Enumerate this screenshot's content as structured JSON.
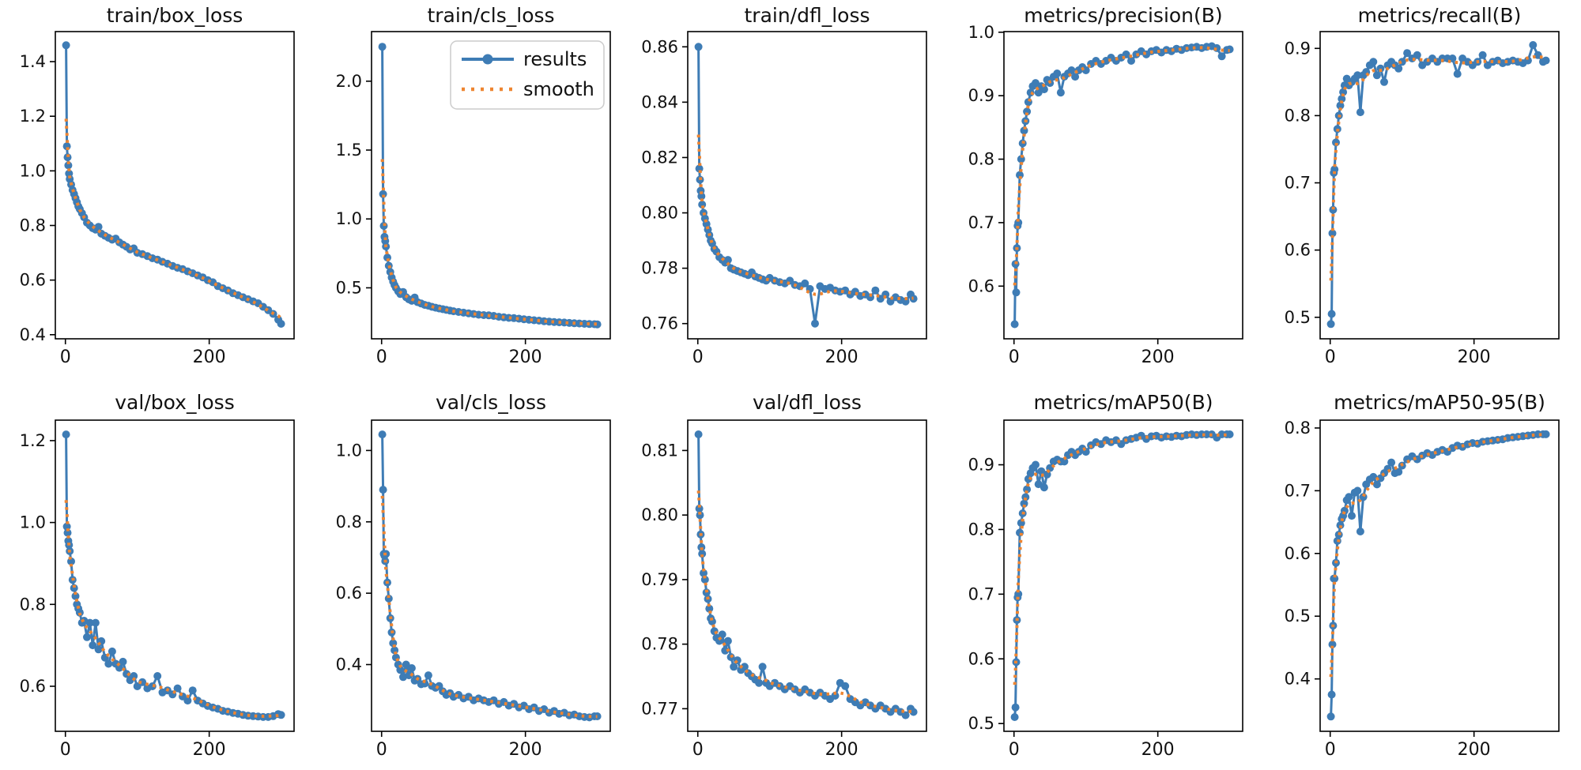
{
  "figure": {
    "background": "#ffffff",
    "rows": 2,
    "cols": 5
  },
  "style": {
    "results_color": "#3e7cb5",
    "smooth_color": "#ee8531",
    "spine_color": "#000000",
    "tick_text_color": "#111111",
    "legend_border_color": "#cccccc",
    "legend_bg_color": "#ffffff"
  },
  "legend": {
    "entries": [
      {
        "label": "results",
        "style": "line-with-dot-marker"
      },
      {
        "label": "smooth",
        "style": "dotted"
      }
    ],
    "shown_on_panel": "train/cls_loss"
  },
  "chart_data": {
    "type": "line",
    "layout_hint": "2x5 grid of matplotlib-style panels, no gridlines, box spines, legend only on train/cls_loss",
    "xlim": [
      -14,
      318
    ],
    "xticks": [
      0,
      200
    ],
    "xtick_labels": [
      "0",
      "200"
    ],
    "x": [
      1,
      2,
      3,
      4,
      5,
      6,
      8,
      10,
      12,
      14,
      16,
      18,
      20,
      23,
      26,
      30,
      34,
      38,
      42,
      46,
      50,
      55,
      60,
      65,
      70,
      75,
      80,
      85,
      90,
      95,
      100,
      107,
      114,
      121,
      128,
      135,
      142,
      149,
      156,
      163,
      170,
      177,
      184,
      191,
      198,
      205,
      212,
      219,
      226,
      233,
      240,
      247,
      254,
      261,
      268,
      275,
      282,
      289,
      296,
      300
    ],
    "series_names": [
      "results",
      "smooth"
    ],
    "panels": [
      {
        "title": "train/box_loss",
        "legend": false,
        "ylim": [
          0.385,
          1.51
        ],
        "yticks": [
          0.4,
          0.6,
          0.8,
          1.0,
          1.2,
          1.4
        ],
        "ytick_labels": [
          "0.4",
          "0.6",
          "0.8",
          "1.0",
          "1.2",
          "1.4"
        ],
        "y": [
          1.46,
          1.09,
          1.05,
          1.02,
          0.99,
          0.97,
          0.95,
          0.93,
          0.915,
          0.9,
          0.885,
          0.87,
          0.86,
          0.845,
          0.83,
          0.81,
          0.8,
          0.79,
          0.785,
          0.795,
          0.77,
          0.762,
          0.755,
          0.748,
          0.752,
          0.738,
          0.73,
          0.722,
          0.712,
          0.716,
          0.7,
          0.695,
          0.688,
          0.68,
          0.675,
          0.667,
          0.66,
          0.652,
          0.645,
          0.64,
          0.632,
          0.625,
          0.617,
          0.61,
          0.6,
          0.592,
          0.578,
          0.57,
          0.562,
          0.552,
          0.545,
          0.537,
          0.53,
          0.522,
          0.515,
          0.502,
          0.49,
          0.476,
          0.455,
          0.44
        ]
      },
      {
        "title": "train/cls_loss",
        "legend": true,
        "ylim": [
          0.13,
          2.36
        ],
        "yticks": [
          0.5,
          1.0,
          1.5,
          2.0
        ],
        "ytick_labels": [
          "0.5",
          "1.0",
          "1.5",
          "2.0"
        ],
        "y": [
          2.25,
          1.18,
          0.95,
          0.87,
          0.84,
          0.8,
          0.72,
          0.66,
          0.615,
          0.575,
          0.545,
          0.52,
          0.5,
          0.475,
          0.455,
          0.47,
          0.432,
          0.416,
          0.406,
          0.43,
          0.396,
          0.386,
          0.376,
          0.37,
          0.362,
          0.356,
          0.35,
          0.345,
          0.34,
          0.335,
          0.33,
          0.325,
          0.32,
          0.315,
          0.31,
          0.305,
          0.302,
          0.3,
          0.296,
          0.29,
          0.286,
          0.282,
          0.28,
          0.276,
          0.272,
          0.268,
          0.265,
          0.262,
          0.258,
          0.255,
          0.252,
          0.25,
          0.248,
          0.245,
          0.243,
          0.241,
          0.239,
          0.237,
          0.236,
          0.235
        ]
      },
      {
        "title": "train/dfl_loss",
        "legend": false,
        "ylim": [
          0.7545,
          0.8655
        ],
        "yticks": [
          0.76,
          0.78,
          0.8,
          0.82,
          0.84,
          0.86
        ],
        "ytick_labels": [
          "0.76",
          "0.78",
          "0.80",
          "0.82",
          "0.84",
          "0.86"
        ],
        "y": [
          0.86,
          0.816,
          0.812,
          0.808,
          0.806,
          0.803,
          0.8,
          0.798,
          0.796,
          0.794,
          0.792,
          0.79,
          0.789,
          0.787,
          0.786,
          0.784,
          0.783,
          0.782,
          0.783,
          0.78,
          0.7795,
          0.779,
          0.7785,
          0.778,
          0.7775,
          0.7785,
          0.777,
          0.7765,
          0.776,
          0.7755,
          0.7765,
          0.7755,
          0.775,
          0.7745,
          0.7755,
          0.774,
          0.7735,
          0.7745,
          0.7725,
          0.76,
          0.7735,
          0.7725,
          0.773,
          0.772,
          0.7715,
          0.772,
          0.7705,
          0.7715,
          0.77,
          0.7705,
          0.7695,
          0.772,
          0.769,
          0.7705,
          0.768,
          0.7695,
          0.7685,
          0.768,
          0.7705,
          0.769
        ]
      },
      {
        "title": "metrics/precision(B)",
        "legend": false,
        "ylim": [
          0.517,
          1.001
        ],
        "yticks": [
          0.6,
          0.7,
          0.8,
          0.9,
          1.0
        ],
        "ytick_labels": [
          "0.6",
          "0.7",
          "0.8",
          "0.9",
          "1.0"
        ],
        "y": [
          0.54,
          0.635,
          0.59,
          0.66,
          0.695,
          0.7,
          0.775,
          0.8,
          0.825,
          0.845,
          0.86,
          0.875,
          0.89,
          0.905,
          0.915,
          0.92,
          0.905,
          0.915,
          0.91,
          0.925,
          0.92,
          0.93,
          0.935,
          0.905,
          0.93,
          0.935,
          0.94,
          0.93,
          0.94,
          0.945,
          0.94,
          0.95,
          0.955,
          0.95,
          0.955,
          0.96,
          0.955,
          0.96,
          0.965,
          0.955,
          0.965,
          0.97,
          0.965,
          0.97,
          0.972,
          0.968,
          0.972,
          0.97,
          0.974,
          0.972,
          0.975,
          0.976,
          0.977,
          0.975,
          0.977,
          0.978,
          0.975,
          0.962,
          0.972,
          0.973
        ]
      },
      {
        "title": "metrics/recall(B)",
        "legend": false,
        "ylim": [
          0.468,
          0.925
        ],
        "yticks": [
          0.5,
          0.6,
          0.7,
          0.8,
          0.9
        ],
        "ytick_labels": [
          "0.5",
          "0.6",
          "0.7",
          "0.8",
          "0.9"
        ],
        "y": [
          0.49,
          0.505,
          0.625,
          0.66,
          0.715,
          0.72,
          0.76,
          0.78,
          0.8,
          0.815,
          0.825,
          0.835,
          0.845,
          0.855,
          0.845,
          0.85,
          0.855,
          0.86,
          0.805,
          0.86,
          0.865,
          0.875,
          0.88,
          0.86,
          0.87,
          0.85,
          0.875,
          0.88,
          0.875,
          0.87,
          0.88,
          0.893,
          0.885,
          0.89,
          0.875,
          0.88,
          0.885,
          0.88,
          0.885,
          0.885,
          0.885,
          0.862,
          0.885,
          0.88,
          0.875,
          0.88,
          0.89,
          0.875,
          0.88,
          0.882,
          0.878,
          0.88,
          0.882,
          0.88,
          0.878,
          0.882,
          0.905,
          0.89,
          0.88,
          0.882
        ]
      },
      {
        "title": "val/box_loss",
        "legend": false,
        "ylim": [
          0.49,
          1.25
        ],
        "yticks": [
          0.6,
          0.8,
          1.0,
          1.2
        ],
        "ytick_labels": [
          "0.6",
          "0.8",
          "1.0",
          "1.2"
        ],
        "y": [
          1.215,
          0.99,
          0.975,
          0.955,
          0.945,
          0.93,
          0.905,
          0.86,
          0.84,
          0.82,
          0.8,
          0.79,
          0.78,
          0.755,
          0.76,
          0.72,
          0.755,
          0.7,
          0.755,
          0.69,
          0.71,
          0.67,
          0.655,
          0.685,
          0.655,
          0.645,
          0.66,
          0.63,
          0.615,
          0.625,
          0.6,
          0.61,
          0.595,
          0.6,
          0.625,
          0.585,
          0.59,
          0.58,
          0.595,
          0.575,
          0.565,
          0.59,
          0.565,
          0.558,
          0.552,
          0.548,
          0.545,
          0.54,
          0.538,
          0.535,
          0.533,
          0.53,
          0.528,
          0.527,
          0.526,
          0.525,
          0.525,
          0.527,
          0.532,
          0.53
        ]
      },
      {
        "title": "val/cls_loss",
        "legend": false,
        "ylim": [
          0.213,
          1.085
        ],
        "yticks": [
          0.4,
          0.6,
          0.8,
          1.0
        ],
        "ytick_labels": [
          "0.4",
          "0.6",
          "0.8",
          "1.0"
        ],
        "y": [
          1.045,
          0.89,
          0.71,
          0.705,
          0.69,
          0.71,
          0.63,
          0.585,
          0.53,
          0.49,
          0.46,
          0.44,
          0.42,
          0.4,
          0.385,
          0.365,
          0.4,
          0.37,
          0.39,
          0.355,
          0.36,
          0.345,
          0.347,
          0.37,
          0.34,
          0.335,
          0.34,
          0.325,
          0.315,
          0.32,
          0.31,
          0.315,
          0.305,
          0.31,
          0.3,
          0.305,
          0.3,
          0.295,
          0.3,
          0.29,
          0.295,
          0.285,
          0.29,
          0.28,
          0.285,
          0.275,
          0.28,
          0.27,
          0.275,
          0.265,
          0.27,
          0.262,
          0.265,
          0.258,
          0.26,
          0.255,
          0.253,
          0.252,
          0.255,
          0.255
        ]
      },
      {
        "title": "val/dfl_loss",
        "legend": false,
        "ylim": [
          0.7665,
          0.8147
        ],
        "yticks": [
          0.77,
          0.78,
          0.79,
          0.8,
          0.81
        ],
        "ytick_labels": [
          "0.77",
          "0.78",
          "0.79",
          "0.80",
          "0.81"
        ],
        "y": [
          0.8125,
          0.801,
          0.8,
          0.797,
          0.795,
          0.794,
          0.791,
          0.79,
          0.788,
          0.787,
          0.7855,
          0.784,
          0.7835,
          0.782,
          0.781,
          0.7805,
          0.7815,
          0.779,
          0.7805,
          0.778,
          0.7765,
          0.7775,
          0.776,
          0.7765,
          0.7755,
          0.775,
          0.7745,
          0.774,
          0.7765,
          0.774,
          0.7735,
          0.774,
          0.7735,
          0.773,
          0.7735,
          0.773,
          0.7725,
          0.773,
          0.7725,
          0.772,
          0.7725,
          0.772,
          0.7715,
          0.772,
          0.774,
          0.7735,
          0.7715,
          0.771,
          0.7705,
          0.771,
          0.7705,
          0.77,
          0.7705,
          0.77,
          0.7695,
          0.77,
          0.7695,
          0.769,
          0.77,
          0.7695
        ]
      },
      {
        "title": "metrics/mAP50(B)",
        "legend": false,
        "ylim": [
          0.488,
          0.969
        ],
        "yticks": [
          0.5,
          0.6,
          0.7,
          0.8,
          0.9
        ],
        "ytick_labels": [
          "0.5",
          "0.6",
          "0.7",
          "0.8",
          "0.9"
        ],
        "y": [
          0.51,
          0.525,
          0.595,
          0.66,
          0.695,
          0.7,
          0.795,
          0.81,
          0.825,
          0.84,
          0.85,
          0.862,
          0.878,
          0.887,
          0.895,
          0.9,
          0.87,
          0.89,
          0.865,
          0.885,
          0.895,
          0.905,
          0.908,
          0.905,
          0.905,
          0.915,
          0.92,
          0.915,
          0.92,
          0.925,
          0.92,
          0.93,
          0.935,
          0.932,
          0.938,
          0.935,
          0.938,
          0.932,
          0.938,
          0.94,
          0.942,
          0.945,
          0.94,
          0.944,
          0.945,
          0.942,
          0.944,
          0.943,
          0.945,
          0.944,
          0.946,
          0.947,
          0.946,
          0.947,
          0.947,
          0.947,
          0.942,
          0.947,
          0.947,
          0.947
        ]
      },
      {
        "title": "metrics/mAP50-95(B)",
        "legend": false,
        "ylim": [
          0.3165,
          0.8125
        ],
        "yticks": [
          0.4,
          0.5,
          0.6,
          0.7,
          0.8
        ],
        "ytick_labels": [
          "0.4",
          "0.5",
          "0.6",
          "0.7",
          "0.8"
        ],
        "y": [
          0.34,
          0.375,
          0.455,
          0.485,
          0.56,
          0.56,
          0.585,
          0.62,
          0.63,
          0.645,
          0.655,
          0.66,
          0.668,
          0.685,
          0.69,
          0.66,
          0.697,
          0.7,
          0.635,
          0.69,
          0.71,
          0.718,
          0.722,
          0.71,
          0.72,
          0.728,
          0.735,
          0.745,
          0.728,
          0.73,
          0.74,
          0.75,
          0.755,
          0.75,
          0.756,
          0.76,
          0.757,
          0.762,
          0.765,
          0.762,
          0.768,
          0.772,
          0.77,
          0.774,
          0.776,
          0.775,
          0.778,
          0.779,
          0.78,
          0.781,
          0.782,
          0.784,
          0.785,
          0.786,
          0.787,
          0.788,
          0.789,
          0.79,
          0.79,
          0.79
        ]
      }
    ]
  }
}
